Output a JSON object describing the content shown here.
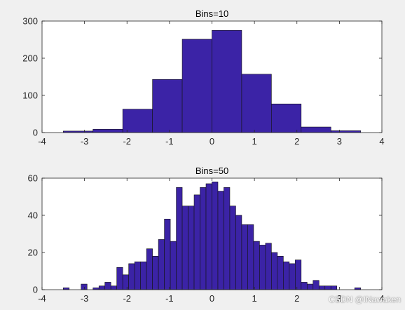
{
  "colors": {
    "bar_fill": "#3b23a6",
    "bar_edge": "#141414",
    "axes_bg": "#ffffff",
    "figure_bg": "#f0f0f0",
    "axis_line": "#262626"
  },
  "watermark": "CSDN @INawaken",
  "chart_data": [
    {
      "type": "bar",
      "title": "Bins=10",
      "xlabel": "",
      "ylabel": "",
      "xlim": [
        -4,
        4
      ],
      "ylim": [
        0,
        300
      ],
      "xticks": [
        -4,
        -3,
        -2,
        -1,
        0,
        1,
        2,
        3,
        4
      ],
      "yticks": [
        0,
        100,
        200,
        300
      ],
      "grid": false,
      "bin_width": 0.7,
      "bin_centers": [
        -3.15,
        -2.45,
        -1.75,
        -1.05,
        -0.35,
        0.35,
        1.05,
        1.75,
        2.45,
        3.15
      ],
      "values": [
        4,
        9,
        63,
        143,
        251,
        275,
        157,
        77,
        15,
        5
      ]
    },
    {
      "type": "bar",
      "title": "Bins=50",
      "xlabel": "",
      "ylabel": "",
      "xlim": [
        -4,
        4
      ],
      "ylim": [
        0,
        60
      ],
      "xticks": [
        -4,
        -3,
        -2,
        -1,
        0,
        1,
        2,
        3,
        4
      ],
      "yticks": [
        0,
        20,
        40,
        60
      ],
      "grid": false,
      "bin_width": 0.14,
      "bin_centers": [
        -3.43,
        -3.29,
        -3.15,
        -3.01,
        -2.87,
        -2.73,
        -2.59,
        -2.45,
        -2.31,
        -2.17,
        -2.03,
        -1.89,
        -1.75,
        -1.61,
        -1.47,
        -1.33,
        -1.19,
        -1.05,
        -0.91,
        -0.77,
        -0.63,
        -0.49,
        -0.35,
        -0.21,
        -0.07,
        0.07,
        0.21,
        0.35,
        0.49,
        0.63,
        0.77,
        0.91,
        1.05,
        1.19,
        1.33,
        1.47,
        1.61,
        1.75,
        1.89,
        2.03,
        2.17,
        2.31,
        2.45,
        2.59,
        2.73,
        2.87,
        3.01,
        3.15,
        3.29,
        3.43
      ],
      "values": [
        1,
        0,
        0,
        3,
        0,
        1,
        2,
        4,
        2,
        12,
        8,
        14,
        15,
        15,
        22,
        18,
        27,
        38,
        26,
        55,
        45,
        45,
        51,
        55,
        57,
        58,
        53,
        55,
        45,
        40,
        35,
        35,
        26,
        24,
        25,
        20,
        18,
        15,
        14,
        16,
        4,
        3,
        5,
        2,
        2,
        2,
        0,
        0,
        0,
        1
      ]
    }
  ]
}
